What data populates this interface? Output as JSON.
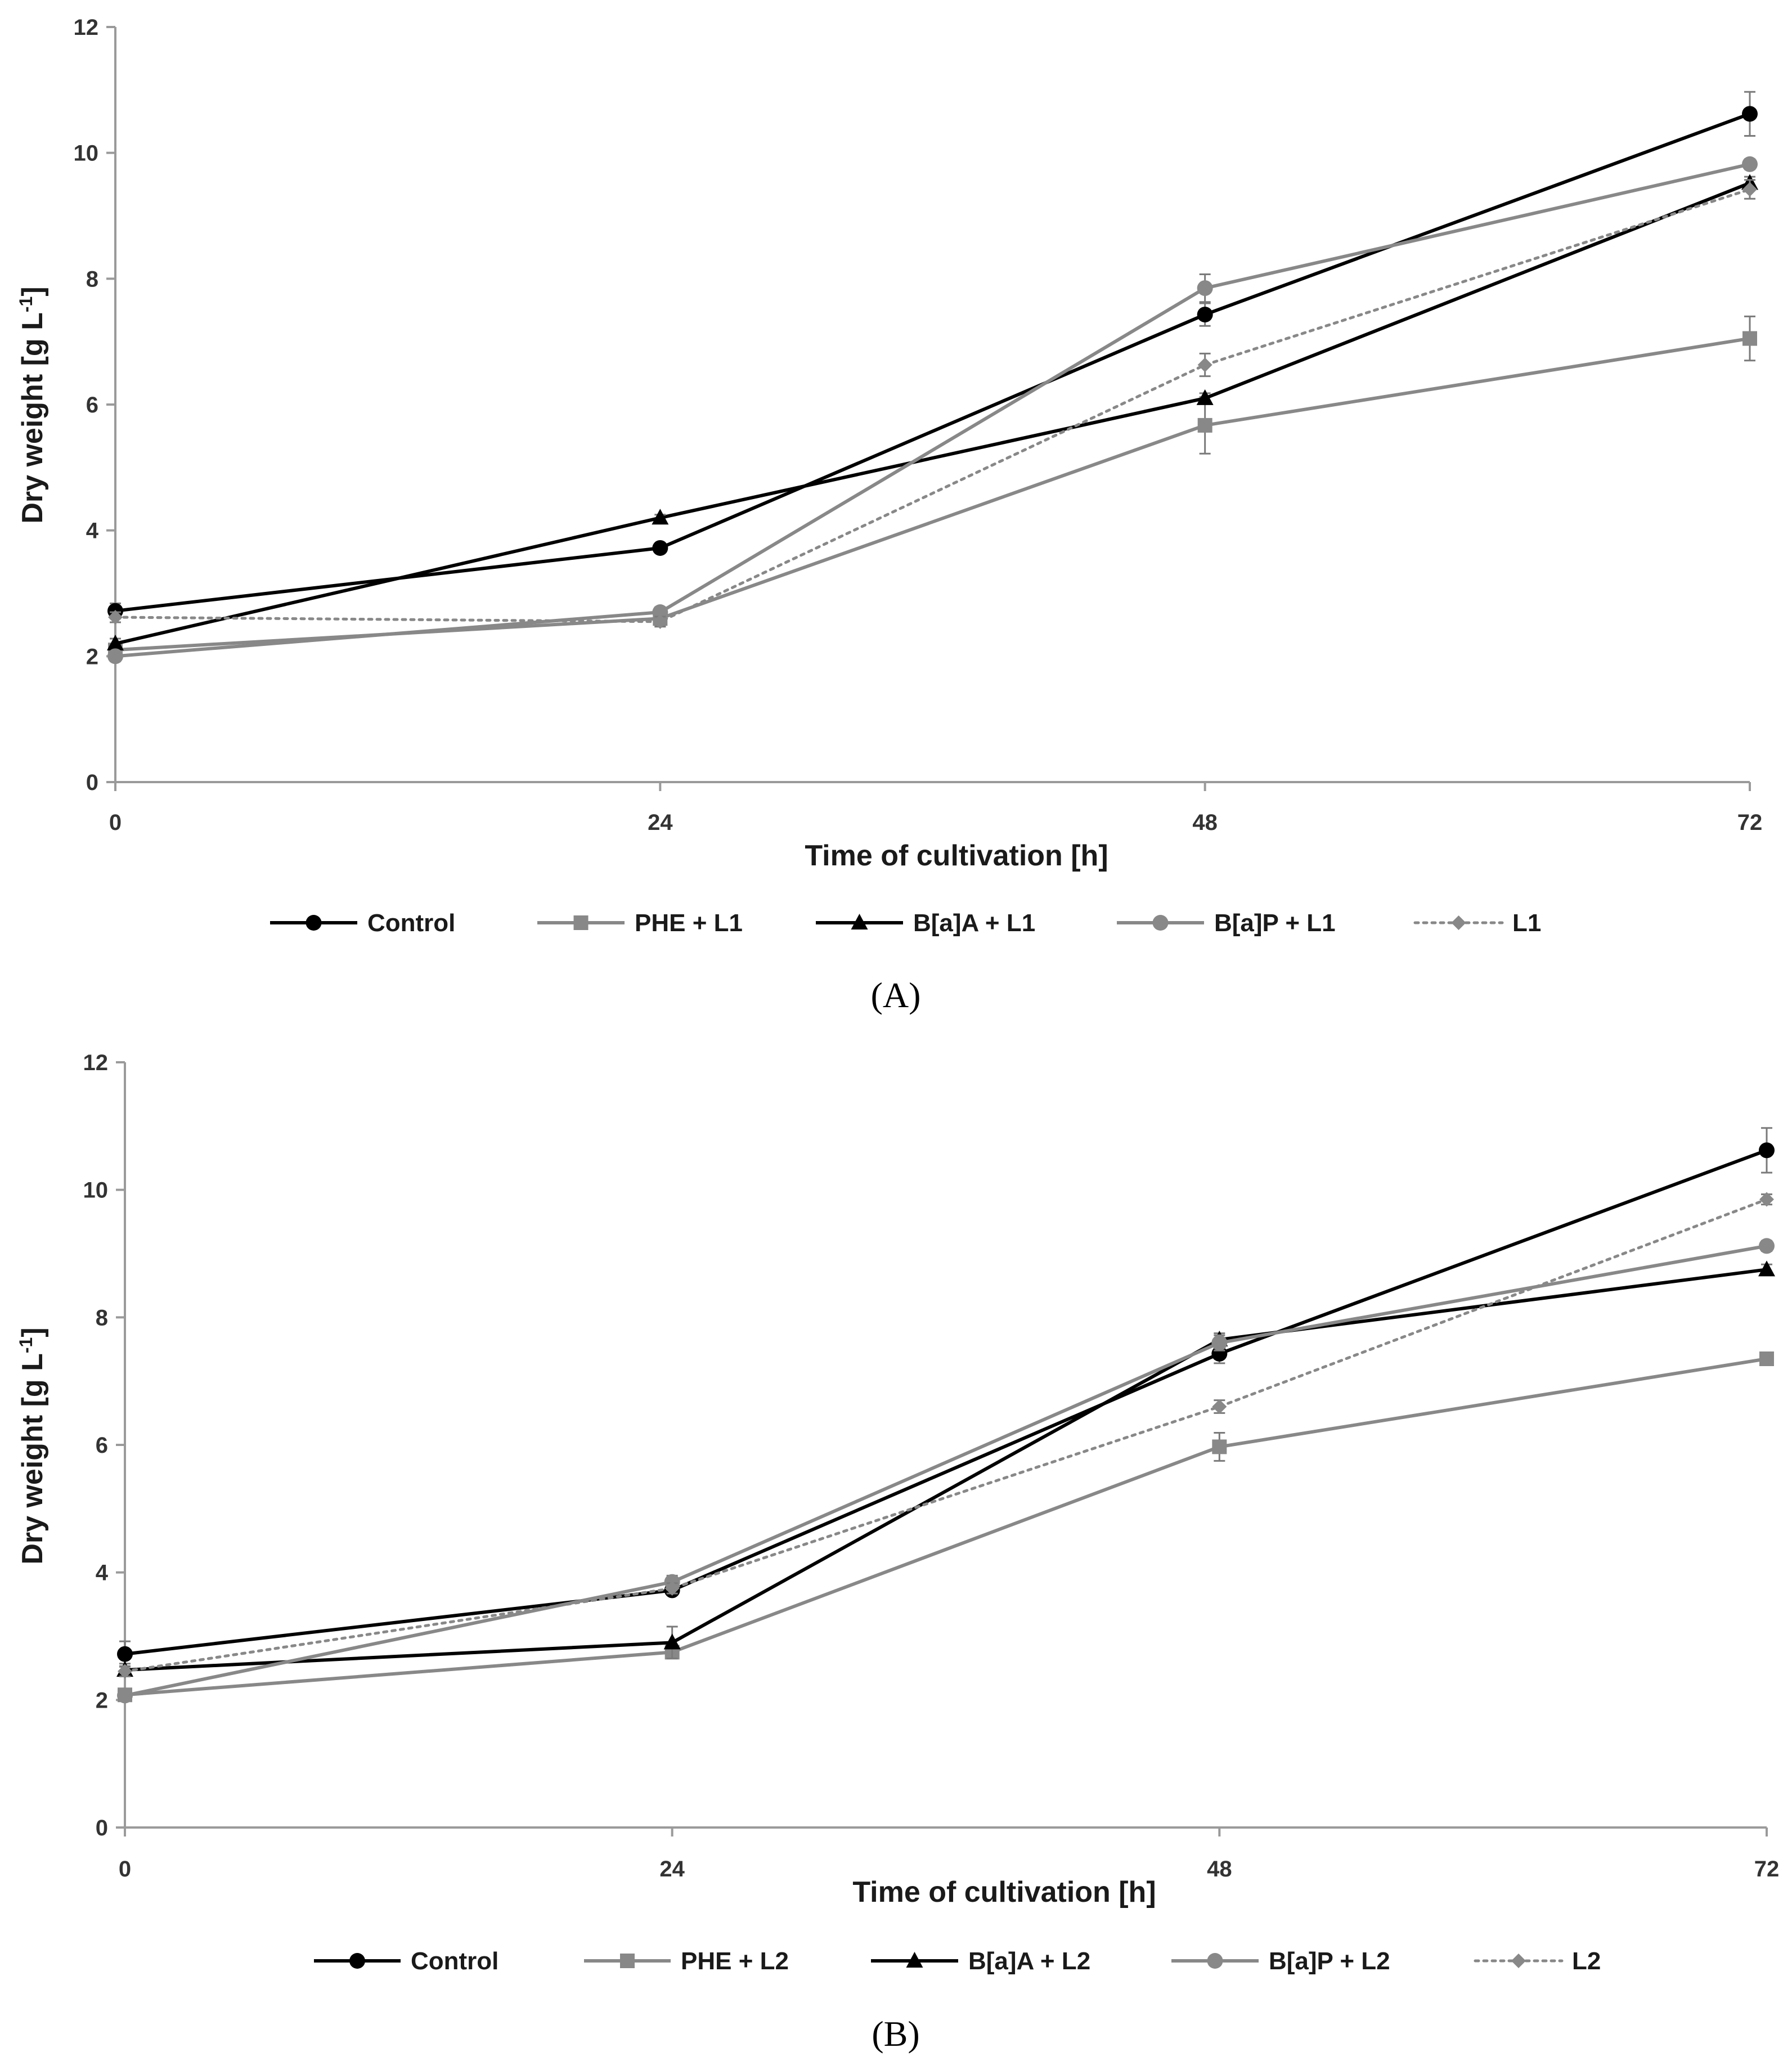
{
  "chart_data": [
    {
      "panel_label": "(A)",
      "type": "line",
      "xlabel": "Time of cultivation [h]",
      "ylabel_main": "Dry weight [g L",
      "ylabel_sup": "-1",
      "ylabel_end": "]",
      "x": [
        0,
        24,
        48,
        72
      ],
      "x_ticks": [
        "0",
        "24",
        "48",
        "72"
      ],
      "y_ticks": [
        "0",
        "2",
        "4",
        "6",
        "8",
        "10",
        "12"
      ],
      "xlim": [
        0,
        72
      ],
      "ylim": [
        0,
        12
      ],
      "legend_position": "bottom",
      "series": [
        {
          "name": "Control",
          "color": "#000000",
          "marker": "circle",
          "dash": "solid",
          "values": [
            2.72,
            3.72,
            7.43,
            10.62
          ],
          "errors": [
            0.12,
            0.05,
            0.18,
            0.35
          ]
        },
        {
          "name": "PHE + L1",
          "color": "#888888",
          "marker": "square",
          "dash": "solid",
          "values": [
            2.1,
            2.6,
            5.67,
            7.05
          ],
          "errors": [
            0.1,
            0.12,
            0.45,
            0.35
          ]
        },
        {
          "name": "B[a]A + L1",
          "color": "#000000",
          "marker": "triangle",
          "dash": "solid",
          "values": [
            2.2,
            4.2,
            6.1,
            9.52
          ],
          "errors": [
            0.08,
            0.05,
            0.08,
            0.1
          ]
        },
        {
          "name": "B[a]P + L1",
          "color": "#888888",
          "marker": "circle",
          "dash": "solid",
          "values": [
            2.0,
            2.7,
            7.85,
            9.82
          ],
          "errors": [
            0.08,
            0.08,
            0.22,
            0.08
          ]
        },
        {
          "name": "L1",
          "color": "#888888",
          "marker": "diamond",
          "dash": "dotted",
          "values": [
            2.62,
            2.55,
            6.63,
            9.42
          ],
          "errors": [
            0.08,
            0.08,
            0.18,
            0.15
          ]
        }
      ]
    },
    {
      "panel_label": "(B)",
      "type": "line",
      "xlabel": "Time of cultivation [h]",
      "ylabel_main": "Dry weight [g L",
      "ylabel_sup": "-1",
      "ylabel_end": "]",
      "x": [
        0,
        24,
        48,
        72
      ],
      "x_ticks": [
        "0",
        "24",
        "48",
        "72"
      ],
      "y_ticks": [
        "0",
        "2",
        "4",
        "6",
        "8",
        "10",
        "12"
      ],
      "xlim": [
        0,
        72
      ],
      "ylim": [
        0,
        12
      ],
      "legend_position": "bottom",
      "series": [
        {
          "name": "Control",
          "color": "#000000",
          "marker": "circle",
          "dash": "solid",
          "values": [
            2.72,
            3.72,
            7.43,
            10.62
          ],
          "errors": [
            0.2,
            0.05,
            0.15,
            0.35
          ]
        },
        {
          "name": "PHE + L2",
          "color": "#888888",
          "marker": "square",
          "dash": "solid",
          "values": [
            2.08,
            2.75,
            5.97,
            7.35
          ],
          "errors": [
            0.08,
            0.08,
            0.22,
            0.08
          ]
        },
        {
          "name": "B[a]A + L2",
          "color": "#000000",
          "marker": "triangle",
          "dash": "solid",
          "values": [
            2.47,
            2.9,
            7.65,
            8.75
          ],
          "errors": [
            0.1,
            0.25,
            0.1,
            0.08
          ]
        },
        {
          "name": "B[a]P + L2",
          "color": "#888888",
          "marker": "circle",
          "dash": "solid",
          "values": [
            2.07,
            3.85,
            7.6,
            9.12
          ],
          "errors": [
            0.08,
            0.1,
            0.12,
            0.08
          ]
        },
        {
          "name": "L2",
          "color": "#888888",
          "marker": "diamond",
          "dash": "dotted",
          "values": [
            2.45,
            3.75,
            6.6,
            9.85
          ],
          "errors": [
            0.08,
            0.08,
            0.1,
            0.08
          ]
        }
      ]
    }
  ]
}
